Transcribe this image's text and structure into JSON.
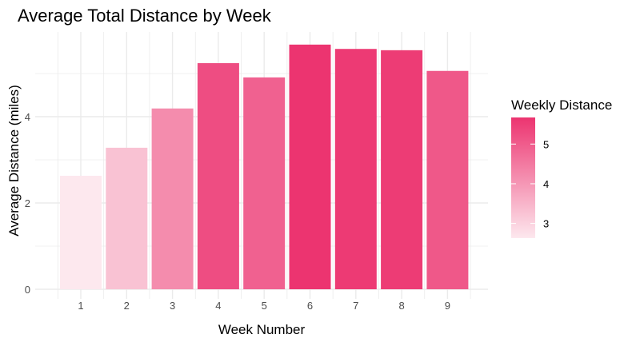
{
  "chart_data": {
    "type": "bar",
    "title": "Average Total Distance by Week",
    "xlabel": "Week Number",
    "ylabel": "Average Distance (miles)",
    "categories": [
      "1",
      "2",
      "3",
      "4",
      "5",
      "6",
      "7",
      "8",
      "9"
    ],
    "values": [
      2.63,
      3.28,
      4.19,
      5.24,
      4.91,
      5.67,
      5.57,
      5.54,
      5.06
    ],
    "ylim": [
      0,
      6
    ],
    "yticks": [
      0,
      2,
      4
    ],
    "grid": true,
    "legend": {
      "title": "Weekly Distance",
      "position": "right",
      "type": "colorbar",
      "ticks": [
        3,
        4,
        5
      ],
      "range": [
        2.63,
        5.67
      ],
      "low_color": "#fde8ee",
      "high_color": "#ec3470"
    }
  }
}
